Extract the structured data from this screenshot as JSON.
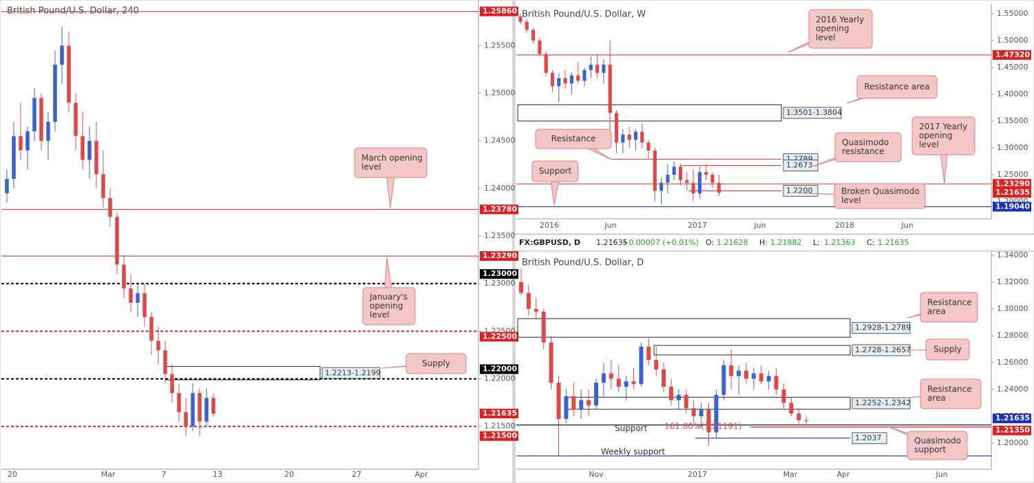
{
  "header": {
    "symbol": "FX:GBPUSD, D",
    "price": "1.21635",
    "change": "+0.00007 (+0.01%)",
    "ohlc": [
      {
        "key": "O:",
        "value": "1.21628"
      },
      {
        "key": "H:",
        "value": "1.21882"
      },
      {
        "key": "L:",
        "value": "1.21363"
      },
      {
        "key": "C:",
        "value": "1.21635"
      }
    ]
  },
  "chart_data": [
    {
      "type": "candlestick",
      "title": "British Pound/U.S. Dollar, 240",
      "up_color": "#3a62d0",
      "down_color": "#e04848",
      "ylim": [
        1.2105,
        1.2598
      ],
      "yticks": [
        {
          "value": 1.215,
          "label": "1.21500"
        },
        {
          "value": 1.22,
          "label": "1.22000"
        },
        {
          "value": 1.225,
          "label": "1.22500"
        },
        {
          "value": 1.23,
          "label": "1.23000"
        },
        {
          "value": 1.235,
          "label": "1.23500"
        },
        {
          "value": 1.24,
          "label": "1.24000"
        },
        {
          "value": 1.245,
          "label": "1.24500"
        },
        {
          "value": 1.25,
          "label": "1.25000"
        },
        {
          "value": 1.255,
          "label": "1.25500"
        }
      ],
      "xticks": [
        "20",
        "Mar",
        "7",
        "13",
        "20",
        "27",
        "Apr"
      ],
      "candles": [
        [
          1.2395,
          1.242,
          1.2385,
          1.241
        ],
        [
          1.241,
          1.247,
          1.24,
          1.2455
        ],
        [
          1.2455,
          1.249,
          1.243,
          1.244
        ],
        [
          1.244,
          1.2465,
          1.242,
          1.246
        ],
        [
          1.246,
          1.2505,
          1.245,
          1.2495
        ],
        [
          1.2495,
          1.25,
          1.244,
          1.245
        ],
        [
          1.245,
          1.248,
          1.243,
          1.247
        ],
        [
          1.247,
          1.2545,
          1.246,
          1.253
        ],
        [
          1.253,
          1.257,
          1.251,
          1.255
        ],
        [
          1.255,
          1.2565,
          1.248,
          1.249
        ],
        [
          1.249,
          1.25,
          1.244,
          1.2455
        ],
        [
          1.2455,
          1.248,
          1.242,
          1.243
        ],
        [
          1.243,
          1.2465,
          1.241,
          1.245
        ],
        [
          1.245,
          1.247,
          1.24,
          1.2415
        ],
        [
          1.2415,
          1.244,
          1.238,
          1.239
        ],
        [
          1.239,
          1.24,
          1.236,
          1.237
        ],
        [
          1.237,
          1.2375,
          1.231,
          1.232
        ],
        [
          1.232,
          1.233,
          1.2285,
          1.2295
        ],
        [
          1.2295,
          1.231,
          1.227,
          1.228
        ],
        [
          1.228,
          1.23,
          1.2265,
          1.229
        ],
        [
          1.229,
          1.23,
          1.2255,
          1.2265
        ],
        [
          1.2265,
          1.227,
          1.2225,
          1.224
        ],
        [
          1.224,
          1.2255,
          1.2215,
          1.223
        ],
        [
          1.223,
          1.224,
          1.2195,
          1.2205
        ],
        [
          1.2205,
          1.2215,
          1.2175,
          1.2185
        ],
        [
          1.2185,
          1.2195,
          1.2155,
          1.2165
        ],
        [
          1.2165,
          1.218,
          1.214,
          1.215
        ],
        [
          1.215,
          1.2195,
          1.2145,
          1.2185
        ],
        [
          1.2185,
          1.219,
          1.214,
          1.2155
        ],
        [
          1.2155,
          1.219,
          1.215,
          1.218
        ],
        [
          1.218,
          1.2185,
          1.216,
          1.21635
        ]
      ],
      "levels": [
        {
          "value": 1.2586,
          "color": "#e04848",
          "style": "solid"
        },
        {
          "value": 1.2378,
          "color": "#e04848",
          "style": "solid"
        },
        {
          "value": 1.2329,
          "color": "#e04848",
          "style": "solid"
        },
        {
          "value": 1.23,
          "color": "#000000",
          "style": "dashed"
        },
        {
          "value": 1.225,
          "color": "#e02020",
          "style": "dashed"
        },
        {
          "value": 1.22,
          "color": "#000000",
          "style": "dashed"
        },
        {
          "value": 1.215,
          "color": "#e02020",
          "style": "dashed"
        }
      ],
      "zones": [
        {
          "low": 1.2199,
          "high": 1.2213,
          "label": "1.2213-1.2199"
        }
      ],
      "tags": [
        {
          "value": 1.2586,
          "label": "1.25860",
          "color": "#e02020"
        },
        {
          "value": 1.2378,
          "label": "1.23780",
          "color": "#e02020"
        },
        {
          "value": 1.2329,
          "label": "1.23290",
          "color": "#e02020"
        },
        {
          "value": 1.23,
          "label": "1.23000",
          "color": "#000000"
        },
        {
          "value": 1.225,
          "label": "1.22500",
          "color": "#e02020"
        },
        {
          "value": 1.22,
          "label": "1.22000",
          "color": "#000000"
        },
        {
          "value": 1.21635,
          "label": "1.21635",
          "color": "#e02020"
        },
        {
          "value": 1.215,
          "label": "1.21500",
          "color": "#e02020"
        }
      ],
      "callouts": [
        {
          "lines": [
            "March opening",
            "level"
          ]
        },
        {
          "lines": [
            "January's",
            "opening",
            "level"
          ]
        },
        {
          "lines": [
            "Supply"
          ]
        }
      ],
      "annotations": []
    },
    {
      "type": "candlestick",
      "title": "British Pound/U.S. Dollar, W",
      "up_color": "#3a62d0",
      "down_color": "#e04848",
      "ylim": [
        1.1679,
        1.5692
      ],
      "yticks": [
        {
          "value": 1.2,
          "label": "1.20000"
        },
        {
          "value": 1.25,
          "label": "1.25000"
        },
        {
          "value": 1.3,
          "label": "1.30000"
        },
        {
          "value": 1.35,
          "label": "1.35000"
        },
        {
          "value": 1.4,
          "label": "1.40000"
        },
        {
          "value": 1.45,
          "label": "1.45000"
        },
        {
          "value": 1.5,
          "label": "1.50000"
        },
        {
          "value": 1.55,
          "label": "1.55000"
        }
      ],
      "xticks": [
        "2016",
        "Jun",
        "2017",
        "Jun",
        "2018",
        "Jun"
      ],
      "candles": [
        [
          1.545,
          1.55,
          1.53,
          1.535
        ],
        [
          1.535,
          1.54,
          1.515,
          1.52
        ],
        [
          1.52,
          1.525,
          1.495,
          1.5
        ],
        [
          1.5,
          1.505,
          1.47,
          1.475
        ],
        [
          1.475,
          1.48,
          1.435,
          1.44
        ],
        [
          1.44,
          1.445,
          1.405,
          1.415
        ],
        [
          1.415,
          1.44,
          1.385,
          1.43
        ],
        [
          1.43,
          1.445,
          1.41,
          1.42
        ],
        [
          1.42,
          1.44,
          1.4,
          1.435
        ],
        [
          1.435,
          1.46,
          1.42,
          1.425
        ],
        [
          1.425,
          1.45,
          1.415,
          1.445
        ],
        [
          1.445,
          1.47,
          1.43,
          1.455
        ],
        [
          1.455,
          1.475,
          1.43,
          1.44
        ],
        [
          1.44,
          1.465,
          1.42,
          1.455
        ],
        [
          1.455,
          1.5,
          1.32,
          1.365
        ],
        [
          1.365,
          1.37,
          1.29,
          1.31
        ],
        [
          1.31,
          1.335,
          1.29,
          1.325
        ],
        [
          1.325,
          1.34,
          1.3,
          1.315
        ],
        [
          1.315,
          1.335,
          1.295,
          1.33
        ],
        [
          1.33,
          1.345,
          1.3,
          1.31
        ],
        [
          1.31,
          1.315,
          1.28,
          1.295
        ],
        [
          1.295,
          1.3,
          1.2,
          1.22
        ],
        [
          1.22,
          1.245,
          1.195,
          1.235
        ],
        [
          1.235,
          1.27,
          1.215,
          1.25
        ],
        [
          1.25,
          1.275,
          1.24,
          1.265
        ],
        [
          1.265,
          1.27,
          1.23,
          1.24
        ],
        [
          1.24,
          1.255,
          1.22,
          1.235
        ],
        [
          1.235,
          1.26,
          1.2,
          1.215
        ],
        [
          1.215,
          1.265,
          1.205,
          1.255
        ],
        [
          1.255,
          1.27,
          1.24,
          1.25
        ],
        [
          1.25,
          1.255,
          1.225,
          1.235
        ],
        [
          1.235,
          1.25,
          1.21,
          1.21635
        ]
      ],
      "levels": [
        {
          "value": 1.4732,
          "color": "#e04848",
          "style": "solid"
        },
        {
          "value": 1.2789,
          "color": "#e04848",
          "style": "solid",
          "label": "1.2789"
        },
        {
          "value": 1.2673,
          "color": "#e04848",
          "style": "solid",
          "label": "1.2673"
        },
        {
          "value": 1.2329,
          "color": "#e04848",
          "style": "solid"
        },
        {
          "value": 1.22,
          "color": "#e04848",
          "style": "solid",
          "label": "1.2200"
        },
        {
          "value": 1.1904,
          "color": "#2233aa",
          "style": "solid"
        }
      ],
      "zones": [
        {
          "low": 1.3501,
          "high": 1.3804,
          "label": "1.3501-1.3804"
        }
      ],
      "tags": [
        {
          "value": 1.4732,
          "label": "1.47320",
          "color": "#e02020"
        },
        {
          "value": 1.2329,
          "label": "1.23290",
          "color": "#e02020"
        },
        {
          "value": 1.21635,
          "label": "1.21635",
          "color": "#e02020"
        },
        {
          "value": 1.1904,
          "label": "1.19040",
          "color": "#1a2fc0"
        }
      ],
      "callouts": [
        {
          "lines": [
            "2016 Yearly",
            "opening",
            "level"
          ]
        },
        {
          "lines": [
            "Resistance area"
          ]
        },
        {
          "lines": [
            "Resistance"
          ]
        },
        {
          "lines": [
            "Quasimodo",
            "resistance"
          ]
        },
        {
          "lines": [
            "2017 Yearly",
            "opening",
            "level"
          ]
        },
        {
          "lines": [
            "Support"
          ]
        },
        {
          "lines": [
            "Broken Quasimodo",
            "level"
          ]
        }
      ],
      "annotations": []
    },
    {
      "type": "candlestick",
      "title": "British Pound/U.S. Dollar, D",
      "up_color": "#3a62d0",
      "down_color": "#e04848",
      "ylim": [
        1.1805,
        1.3426
      ],
      "yticks": [
        {
          "value": 1.2,
          "label": "1.20000"
        },
        {
          "value": 1.22,
          "label": "1.22000"
        },
        {
          "value": 1.24,
          "label": "1.24000"
        },
        {
          "value": 1.26,
          "label": "1.26000"
        },
        {
          "value": 1.28,
          "label": "1.28000"
        },
        {
          "value": 1.3,
          "label": "1.30000"
        },
        {
          "value": 1.32,
          "label": "1.32000"
        },
        {
          "value": 1.34,
          "label": "1.34000"
        }
      ],
      "xticks": [
        "Nov",
        "2017",
        "Mar",
        "Apr",
        "Jun"
      ],
      "candles": [
        [
          1.32,
          1.33,
          1.31,
          1.312
        ],
        [
          1.312,
          1.318,
          1.295,
          1.3
        ],
        [
          1.3,
          1.308,
          1.292,
          1.298
        ],
        [
          1.298,
          1.3,
          1.27,
          1.275
        ],
        [
          1.275,
          1.28,
          1.24,
          1.245
        ],
        [
          1.245,
          1.25,
          1.19,
          1.218
        ],
        [
          1.218,
          1.24,
          1.215,
          1.235
        ],
        [
          1.235,
          1.245,
          1.22,
          1.225
        ],
        [
          1.225,
          1.24,
          1.218,
          1.232
        ],
        [
          1.232,
          1.24,
          1.22,
          1.228
        ],
        [
          1.228,
          1.248,
          1.225,
          1.245
        ],
        [
          1.245,
          1.26,
          1.235,
          1.252
        ],
        [
          1.252,
          1.262,
          1.24,
          1.248
        ],
        [
          1.248,
          1.258,
          1.238,
          1.242
        ],
        [
          1.242,
          1.25,
          1.232,
          1.246
        ],
        [
          1.246,
          1.256,
          1.24,
          1.244
        ],
        [
          1.244,
          1.275,
          1.242,
          1.272
        ],
        [
          1.272,
          1.278,
          1.258,
          1.262
        ],
        [
          1.262,
          1.272,
          1.25,
          1.255
        ],
        [
          1.255,
          1.26,
          1.238,
          1.242
        ],
        [
          1.242,
          1.248,
          1.228,
          1.232
        ],
        [
          1.232,
          1.24,
          1.225,
          1.236
        ],
        [
          1.236,
          1.24,
          1.222,
          1.226
        ],
        [
          1.226,
          1.232,
          1.215,
          1.22
        ],
        [
          1.22,
          1.23,
          1.212,
          1.225
        ],
        [
          1.225,
          1.23,
          1.198,
          1.208
        ],
        [
          1.208,
          1.24,
          1.204,
          1.236
        ],
        [
          1.236,
          1.262,
          1.232,
          1.258
        ],
        [
          1.258,
          1.27,
          1.24,
          1.25
        ],
        [
          1.25,
          1.258,
          1.236,
          1.254
        ],
        [
          1.254,
          1.26,
          1.244,
          1.248
        ],
        [
          1.248,
          1.256,
          1.24,
          1.252
        ],
        [
          1.252,
          1.258,
          1.244,
          1.246
        ],
        [
          1.246,
          1.254,
          1.24,
          1.25
        ],
        [
          1.25,
          1.256,
          1.236,
          1.24
        ],
        [
          1.24,
          1.244,
          1.226,
          1.23
        ],
        [
          1.23,
          1.234,
          1.22,
          1.222
        ],
        [
          1.222,
          1.226,
          1.214,
          1.217
        ],
        [
          1.217,
          1.22,
          1.213,
          1.21635
        ]
      ],
      "levels": [
        {
          "value": 1.2135,
          "color": "#000000",
          "style": "solid"
        },
        {
          "value": 1.21191,
          "color": "#e02020",
          "style": "solid"
        },
        {
          "value": 1.2037,
          "color": "#3344cc",
          "style": "solid",
          "label": "1.2037"
        },
        {
          "value": 1.1904,
          "color": "#2233aa",
          "style": "solid"
        }
      ],
      "zones": [
        {
          "low": 1.2789,
          "high": 1.2928,
          "label": "1.2928-1.2789"
        },
        {
          "low": 1.2657,
          "high": 1.2728,
          "label": "1.2728-1.2657"
        },
        {
          "low": 1.2252,
          "high": 1.2342,
          "label": "1.2252-1.2342"
        }
      ],
      "tags": [
        {
          "value": 1.21635,
          "label": "1.21635",
          "color": "#1a2fc0"
        },
        {
          "value": 1.2135,
          "label": "1.21350",
          "color": "#e02020"
        }
      ],
      "callouts": [
        {
          "lines": [
            "Resistance",
            "area"
          ]
        },
        {
          "lines": [
            "Supply"
          ]
        },
        {
          "lines": [
            "Resistance",
            "area"
          ]
        },
        {
          "lines": [
            "Quasimodo",
            "support"
          ]
        }
      ],
      "annotations": [
        "Support",
        "Weekly support",
        "161.80%(1.21191)"
      ]
    }
  ]
}
